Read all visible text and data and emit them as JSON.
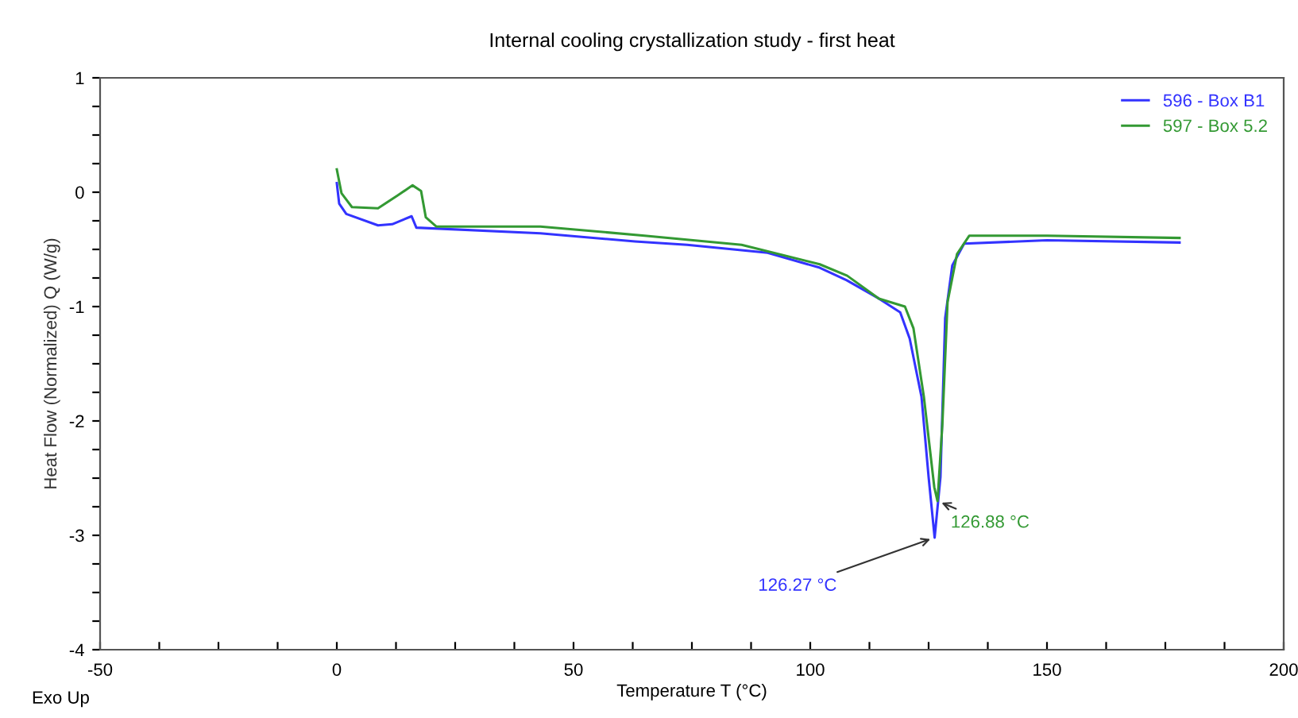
{
  "chart_data": {
    "type": "line",
    "title": "Internal cooling crystallization study - first heat",
    "xlabel": "Temperature T (°C)",
    "ylabel": "Heat Flow (Normalized) Q (W/g)",
    "xlim": [
      -50,
      200
    ],
    "ylim": [
      -4,
      1
    ],
    "xticks": [
      {
        "value": -50,
        "label": "-50"
      },
      {
        "value": -37.5,
        "label": null
      },
      {
        "value": -25,
        "label": null
      },
      {
        "value": -12.5,
        "label": null
      },
      0,
      {
        "value": 12.5,
        "label": null
      },
      {
        "value": 25,
        "label": null
      },
      {
        "value": 37.5,
        "label": null
      },
      50,
      {
        "value": 62.5,
        "label": null
      },
      {
        "value": 75,
        "label": null
      },
      {
        "value": 87.5,
        "label": null
      },
      100,
      {
        "value": 112.5,
        "label": null
      },
      {
        "value": 125,
        "label": null
      },
      {
        "value": 137.5,
        "label": null
      },
      150,
      {
        "value": 162.5,
        "label": null
      },
      {
        "value": 175,
        "label": null
      },
      {
        "value": 187.5,
        "label": null
      },
      200
    ],
    "yticks": [
      -4,
      {
        "value": -3.75,
        "label": null
      },
      {
        "value": -3.5,
        "label": null
      },
      {
        "value": -3.25,
        "label": null
      },
      -3,
      {
        "value": -2.75,
        "label": null
      },
      {
        "value": -2.5,
        "label": null
      },
      {
        "value": -2.25,
        "label": null
      },
      -2,
      {
        "value": -1.75,
        "label": null
      },
      {
        "value": -1.5,
        "label": null
      },
      {
        "value": -1.25,
        "label": null
      },
      -1,
      {
        "value": -0.75,
        "label": null
      },
      {
        "value": -0.5,
        "label": null
      },
      {
        "value": -0.25,
        "label": null
      },
      0,
      {
        "value": 0.25,
        "label": null
      },
      {
        "value": 0.5,
        "label": null
      },
      {
        "value": 0.75,
        "label": null
      },
      1
    ],
    "grid": false,
    "legend": "top right",
    "line_style": "solid",
    "marker": "none",
    "series": [
      {
        "name": "596 - Box B1",
        "color": "#3333ff",
        "x": [
          0,
          0.5,
          2,
          8.7,
          11.7,
          15.8,
          16.8,
          43,
          63,
          74,
          91,
          102,
          107.7,
          114.5,
          119,
          121,
          123.5,
          125,
          126.27,
          127.5,
          128.5,
          130,
          132.5,
          150,
          178
        ],
        "values": [
          0.08,
          -0.1,
          -0.19,
          -0.29,
          -0.28,
          -0.21,
          -0.31,
          -0.36,
          -0.43,
          -0.46,
          -0.53,
          -0.66,
          -0.77,
          -0.93,
          -1.05,
          -1.28,
          -1.79,
          -2.49,
          -3.02,
          -2.49,
          -1.1,
          -0.64,
          -0.45,
          -0.42,
          -0.44
        ]
      },
      {
        "name": "597 - Box 5.2",
        "color": "#339933",
        "x": [
          0,
          1,
          3.2,
          8.7,
          12.8,
          16,
          17.8,
          18.8,
          21,
          43,
          65,
          85.5,
          102,
          107.8,
          114.5,
          120,
          121.8,
          124,
          126.2,
          126.88,
          127.9,
          129,
          131,
          133.6,
          150,
          178
        ],
        "values": [
          0.2,
          -0.01,
          -0.13,
          -0.14,
          -0.03,
          0.06,
          0.01,
          -0.22,
          -0.3,
          -0.3,
          -0.38,
          -0.46,
          -0.63,
          -0.73,
          -0.93,
          -1.0,
          -1.19,
          -1.79,
          -2.58,
          -2.7,
          -2.03,
          -0.96,
          -0.54,
          -0.38,
          -0.38,
          -0.4
        ]
      }
    ],
    "annotations": [
      {
        "text": "126.27 °C",
        "x": 126.27,
        "y": -3.02
      },
      {
        "text": "126.88 °C",
        "x": 126.88,
        "y": -2.7
      },
      "Exo Up"
    ]
  }
}
